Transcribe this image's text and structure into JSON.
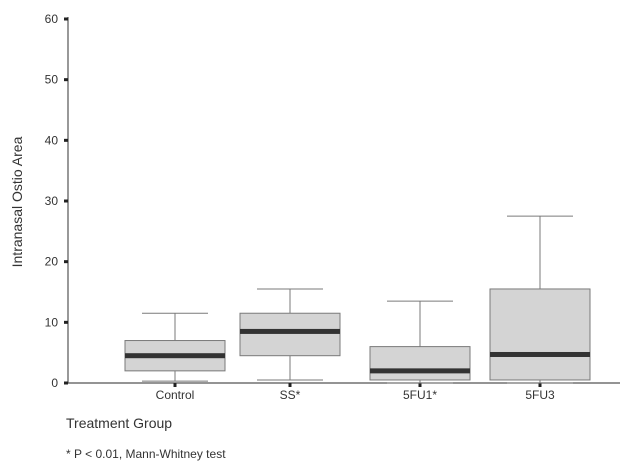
{
  "chart_data": {
    "type": "box",
    "xlabel": "Treatment Group",
    "ylabel": "Intranasal Ostio Area",
    "ylim": [
      0,
      60
    ],
    "yticks": [
      0,
      10,
      20,
      30,
      40,
      50,
      60
    ],
    "grid": false,
    "categories": [
      "Control",
      "SS*",
      "5FU1*",
      "5FU3"
    ],
    "boxes": [
      {
        "category": "Control",
        "whisker_low": 0.3,
        "q1": 2.0,
        "median": 4.5,
        "q3": 7.0,
        "whisker_high": 11.5
      },
      {
        "category": "SS*",
        "whisker_low": 0.5,
        "q1": 4.5,
        "median": 8.5,
        "q3": 11.5,
        "whisker_high": 15.5
      },
      {
        "category": "5FU1*",
        "whisker_low": 0.0,
        "q1": 0.5,
        "median": 2.0,
        "q3": 6.0,
        "whisker_high": 13.5
      },
      {
        "category": "5FU3",
        "whisker_low": 0.0,
        "q1": 0.5,
        "median": 4.7,
        "q3": 15.5,
        "whisker_high": 27.5
      }
    ],
    "colors": {
      "box_fill": "#d4d4d4",
      "box_stroke": "#7a7a7a",
      "median": "#333333",
      "axis": "#555555"
    },
    "footnote": "* P < 0.01, Mann-Whitney test"
  }
}
